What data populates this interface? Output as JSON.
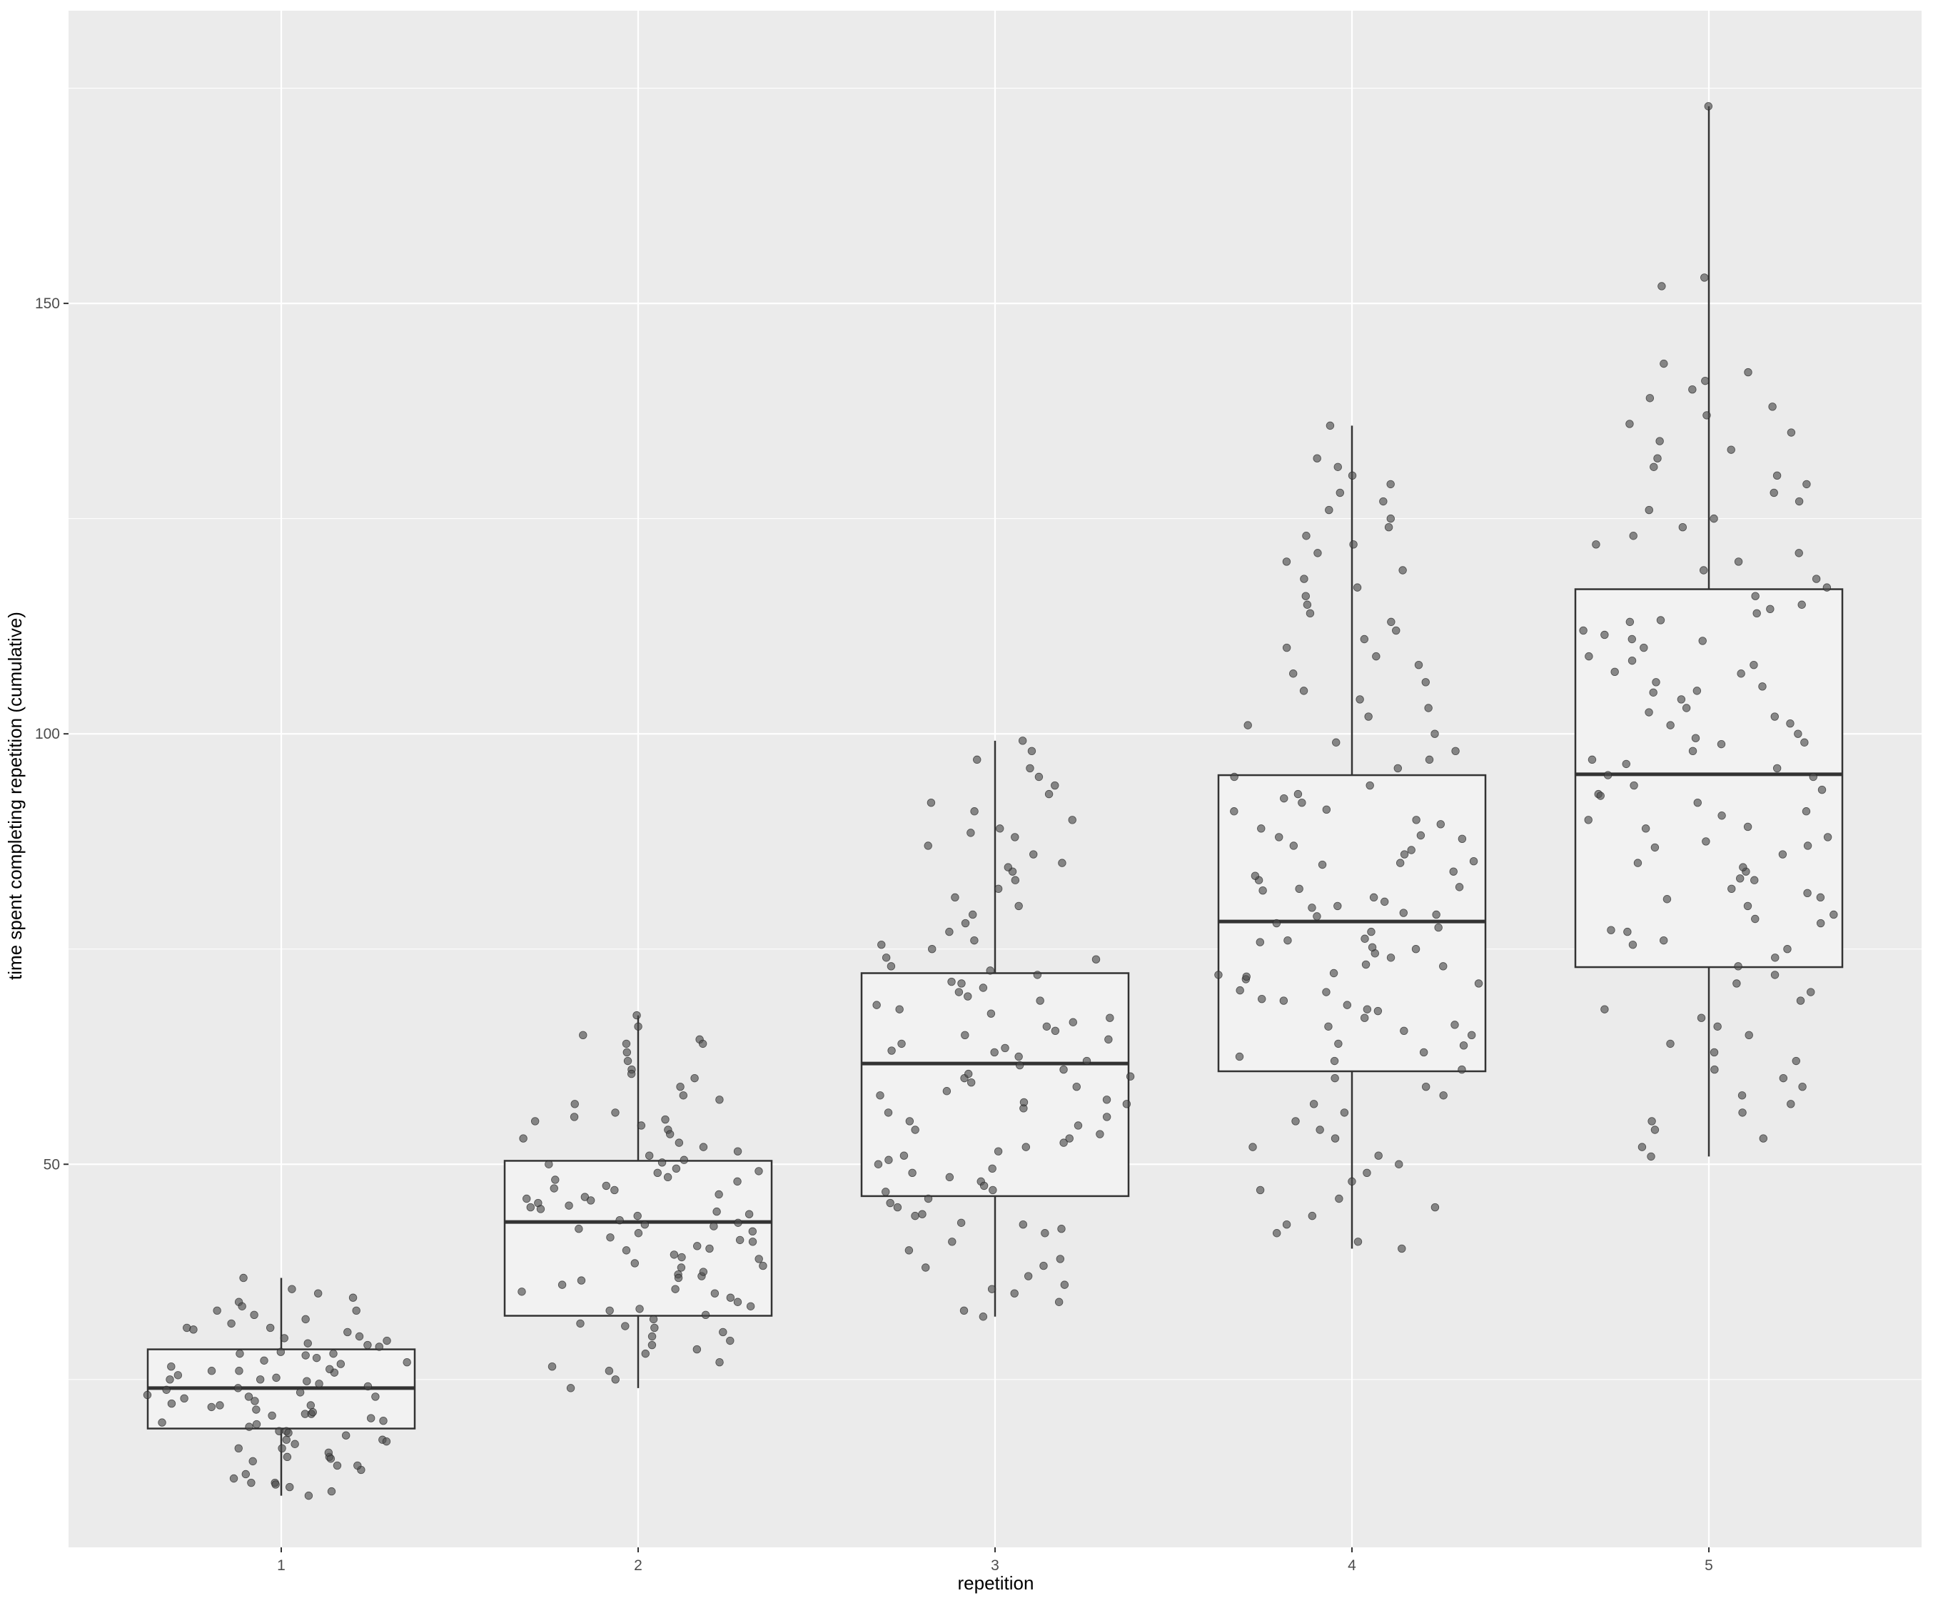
{
  "chart_data": {
    "type": "boxplot",
    "xlabel": "repetition",
    "ylabel": "time spent completing repetition (cumulative)",
    "categories": [
      "1",
      "2",
      "3",
      "4",
      "5"
    ],
    "y_ticks": [
      50,
      100,
      150
    ],
    "ylim": [
      5.5,
      184
    ],
    "grid": true,
    "panel_background": "#ebebeb",
    "grid_color": "#ffffff",
    "box_fill": "#f2f2f2",
    "box_stroke": "#333333",
    "point_color": "#4d4d4d",
    "boxes": [
      {
        "category": "1",
        "whisker_low": 11.5,
        "q1": 19.3,
        "median": 24.0,
        "q3": 28.5,
        "whisker_high": 36.8
      },
      {
        "category": "2",
        "whisker_low": 24.0,
        "q1": 32.4,
        "median": 43.3,
        "q3": 50.4,
        "whisker_high": 67.3
      },
      {
        "category": "3",
        "whisker_low": 32.3,
        "q1": 46.3,
        "median": 61.7,
        "q3": 72.2,
        "whisker_high": 99.2
      },
      {
        "category": "4",
        "whisker_low": 40.2,
        "q1": 60.8,
        "median": 78.2,
        "q3": 95.2,
        "whisker_high": 135.8
      },
      {
        "category": "5",
        "whisker_low": 50.9,
        "q1": 72.9,
        "median": 95.3,
        "q3": 116.8,
        "whisker_high": 172.9
      }
    ],
    "points": [
      {
        "category": "1",
        "values": [
          11.5,
          12.5,
          13,
          14,
          15,
          16,
          17,
          18,
          19,
          20,
          21,
          22,
          22.5,
          23,
          24,
          25,
          26,
          27,
          28,
          29,
          30,
          31,
          32,
          33,
          34,
          35,
          36.8,
          12,
          13.5,
          15.5,
          17.5,
          19.5,
          21.5,
          23.5,
          25.5,
          27.5,
          29.5,
          31.5,
          33.5,
          18.5,
          20.5,
          24.5,
          26.5,
          28.2,
          30.5,
          16.5,
          22.2,
          27.2,
          14.5,
          20.2,
          25.2,
          32.5,
          19.0,
          23.8,
          28.8,
          17.0,
          26.0,
          21.0,
          24.8,
          29.8,
          13.0,
          15.0,
          18.0,
          22.8,
          25.8,
          30.8,
          34.5,
          16.0,
          19.8,
          27.8,
          31.0,
          20.8,
          23.2,
          26.8,
          28.0,
          21.8,
          24.2,
          17.8,
          22.0,
          25.0,
          18.8,
          23.0,
          26.2,
          15.8,
          21.2,
          29.2,
          33.0,
          12.8,
          35.5
        ]
      },
      {
        "category": "2",
        "values": [
          24,
          25,
          26,
          27,
          28,
          29,
          30,
          31,
          32,
          33,
          34,
          35,
          36,
          37,
          38,
          39,
          40,
          41,
          42,
          43,
          44,
          45,
          46,
          47,
          48,
          49,
          50,
          51,
          52,
          53,
          54,
          55,
          56,
          57,
          58,
          59,
          60,
          61,
          62,
          63,
          64,
          65,
          66,
          67.3,
          29.5,
          31.5,
          33.5,
          35.5,
          37.5,
          39.5,
          41.5,
          43.5,
          45.5,
          47.5,
          49.5,
          51.5,
          53.5,
          55.5,
          57.5,
          30.5,
          34.5,
          38.5,
          42.5,
          46.5,
          50.5,
          54.5,
          36.5,
          40.5,
          44.5,
          48.5,
          52.5,
          32.5,
          44.2,
          46.2,
          42.2,
          39.2,
          47.2,
          50.2,
          41.2,
          45.2,
          43.2,
          48.2,
          35.2,
          38.2,
          28.5,
          33.2,
          37.2,
          49.2,
          45.8,
          40.2,
          42.8,
          44.8,
          36.8,
          31.2,
          55.2,
          26.5,
          60.5,
          64.5,
          64.0
        ]
      },
      {
        "category": "3",
        "values": [
          32.3,
          33,
          34,
          35,
          36,
          37,
          38,
          39,
          40,
          41,
          42,
          43,
          44,
          45,
          46,
          47,
          48,
          49,
          50,
          51,
          52,
          53,
          54,
          55,
          56,
          57,
          58,
          59,
          60,
          61,
          62,
          63,
          64,
          65,
          66,
          67,
          68,
          69,
          70,
          71,
          72,
          73,
          74,
          75,
          76,
          77,
          78,
          79,
          80,
          81,
          82,
          83,
          84,
          85,
          86,
          87,
          88,
          89,
          90,
          91,
          92,
          93,
          94,
          95,
          96,
          97,
          98,
          99.2,
          42.5,
          45.5,
          48.5,
          51.5,
          54.5,
          57.5,
          60.5,
          63.5,
          66.5,
          69.5,
          72.5,
          75.5,
          47.5,
          52.5,
          56.5,
          58.5,
          62.5,
          64.5,
          67.5,
          70.5,
          50.5,
          53.5,
          59.5,
          61.5,
          65.5,
          68.5,
          55.5,
          60.2,
          57.2,
          63.2,
          49.5,
          46.8,
          71.2,
          44.2,
          73.8,
          43.2,
          38.2,
          35.5,
          84.5,
          88.5
        ]
      },
      {
        "category": "4",
        "values": [
          40.2,
          41,
          42,
          43,
          44,
          45,
          46,
          47,
          48,
          49,
          50,
          51,
          52,
          53,
          54,
          55,
          56,
          57,
          58,
          59,
          60,
          61,
          62,
          63,
          64,
          65,
          66,
          67,
          68,
          69,
          70,
          71,
          72,
          73,
          74,
          75,
          76,
          77,
          78,
          79,
          80,
          81,
          82,
          83,
          84,
          85,
          86,
          87,
          88,
          89,
          90,
          91,
          92,
          93,
          94,
          95,
          96,
          97,
          98,
          99,
          100,
          101,
          102,
          103,
          104,
          105,
          106,
          107,
          108,
          109,
          110,
          111,
          112,
          113,
          114,
          115,
          116,
          117,
          118,
          119,
          120,
          121,
          122,
          123,
          124,
          125,
          126,
          127,
          128,
          129,
          130,
          131,
          132,
          135.8,
          62.5,
          65.5,
          68.5,
          71.5,
          74.5,
          77.5,
          80.5,
          83.5,
          86.5,
          89.5,
          92.5,
          70.2,
          73.2,
          76.2,
          79.2,
          82.2,
          85.2,
          88.2,
          91.2,
          66.2,
          69.2,
          72.2,
          75.2,
          78.8,
          81.8,
          84.8,
          87.8,
          63.8,
          67.8,
          71.8,
          75.8,
          79.8
        ]
      },
      {
        "category": "5",
        "values": [
          50.9,
          52,
          53,
          54,
          55,
          56,
          57,
          58,
          59,
          60,
          61,
          62,
          63,
          64,
          65,
          66,
          67,
          68,
          69,
          70,
          71,
          72,
          73,
          74,
          75,
          76,
          77,
          78,
          79,
          80,
          81,
          82,
          83,
          84,
          85,
          86,
          87,
          88,
          89,
          90,
          91,
          92,
          93,
          94,
          95,
          96,
          97,
          98,
          99,
          100,
          101,
          102,
          103,
          104,
          105,
          106,
          107,
          108,
          109,
          110,
          111,
          112,
          113,
          114,
          115,
          116,
          117,
          118,
          119,
          120,
          121,
          122,
          123,
          124,
          125,
          126,
          127,
          128,
          129,
          130,
          131,
          132,
          133,
          134,
          135,
          136,
          137,
          138,
          139,
          140,
          141,
          142,
          143,
          152,
          153,
          172.9,
          75.5,
          78.5,
          81.5,
          84.5,
          87.5,
          90.5,
          93.5,
          96.5,
          99.5,
          102.5,
          105.5,
          108.5,
          111.5,
          114.5,
          77.2,
          83.2,
          89.2,
          95.2,
          101.2,
          107.2,
          113.2,
          80.8,
          86.8,
          92.8,
          98.8,
          104.8,
          110.8
        ]
      }
    ]
  }
}
